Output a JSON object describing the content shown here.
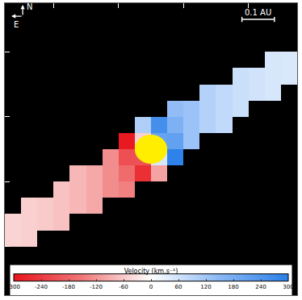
{
  "chart_data": {
    "type": "heatmap",
    "x": [
      -0.425,
      -0.375,
      -0.325,
      -0.275,
      -0.225,
      -0.175,
      -0.125,
      -0.075,
      -0.025,
      0.025,
      0.075,
      0.125,
      0.175,
      0.225,
      0.275,
      0.325,
      0.375,
      0.425
    ],
    "y": [
      -0.425,
      -0.375,
      -0.325,
      -0.275,
      -0.225,
      -0.175,
      -0.125,
      -0.075,
      -0.025,
      0.025,
      0.075,
      0.125,
      0.175,
      0.225,
      0.275,
      0.325,
      0.375,
      0.425
    ],
    "z": [
      [
        null,
        null,
        null,
        null,
        null,
        null,
        null,
        null,
        null,
        null,
        null,
        null,
        null,
        null,
        null,
        null,
        null,
        null
      ],
      [
        null,
        null,
        null,
        null,
        null,
        null,
        null,
        null,
        null,
        null,
        null,
        null,
        null,
        null,
        null,
        null,
        null,
        null
      ],
      [
        null,
        null,
        null,
        null,
        null,
        null,
        null,
        null,
        null,
        null,
        null,
        null,
        null,
        null,
        null,
        null,
        null,
        null
      ],
      [
        -48,
        -53,
        null,
        null,
        null,
        null,
        null,
        null,
        null,
        null,
        null,
        null,
        null,
        null,
        null,
        null,
        null,
        null
      ],
      [
        -48,
        -53,
        -59,
        -68,
        null,
        null,
        null,
        null,
        null,
        null,
        null,
        null,
        null,
        null,
        null,
        null,
        null,
        null
      ],
      [
        null,
        -53,
        -59,
        -68,
        -80,
        -97,
        null,
        null,
        null,
        null,
        null,
        null,
        null,
        null,
        null,
        null,
        null,
        null
      ],
      [
        null,
        null,
        null,
        -68,
        -80,
        -97,
        -127,
        -141,
        null,
        null,
        null,
        null,
        null,
        null,
        null,
        null,
        null,
        null
      ],
      [
        null,
        null,
        null,
        null,
        -80,
        -97,
        -127,
        -169,
        -259,
        -103,
        null,
        null,
        null,
        null,
        null,
        null,
        null,
        null
      ],
      [
        null,
        null,
        null,
        null,
        null,
        null,
        -127,
        -212,
        -206,
        51,
        293,
        null,
        null,
        null,
        null,
        null,
        null,
        null
      ],
      [
        null,
        null,
        null,
        null,
        null,
        null,
        null,
        -293,
        -51,
        206,
        212,
        127,
        null,
        null,
        null,
        null,
        null,
        null
      ],
      [
        null,
        null,
        null,
        null,
        null,
        null,
        null,
        null,
        103,
        259,
        169,
        127,
        97,
        80,
        null,
        null,
        null,
        null
      ],
      [
        null,
        null,
        null,
        null,
        null,
        null,
        null,
        null,
        null,
        null,
        141,
        127,
        97,
        80,
        68,
        null,
        null,
        null
      ],
      [
        null,
        null,
        null,
        null,
        null,
        null,
        null,
        null,
        null,
        null,
        null,
        null,
        97,
        80,
        68,
        59,
        53,
        null
      ],
      [
        null,
        null,
        null,
        null,
        null,
        null,
        null,
        null,
        null,
        null,
        null,
        null,
        null,
        null,
        68,
        59,
        53,
        48
      ],
      [
        null,
        null,
        null,
        null,
        null,
        null,
        null,
        null,
        null,
        null,
        null,
        null,
        null,
        null,
        null,
        null,
        53,
        48
      ],
      [
        null,
        null,
        null,
        null,
        null,
        null,
        null,
        null,
        null,
        null,
        null,
        null,
        null,
        null,
        null,
        null,
        null,
        null
      ],
      [
        null,
        null,
        null,
        null,
        null,
        null,
        null,
        null,
        null,
        null,
        null,
        null,
        null,
        null,
        null,
        null,
        null,
        null
      ],
      [
        null,
        null,
        null,
        null,
        null,
        null,
        null,
        null,
        null,
        null,
        null,
        null,
        null,
        null,
        null,
        null,
        null,
        null
      ]
    ],
    "xlim": [
      -0.45,
      0.45
    ],
    "ylim": [
      -0.45,
      0.45
    ],
    "xticks": [
      -0.3,
      -0.1,
      0.1,
      0.3
    ],
    "yticks": [
      -0.3,
      -0.1,
      0.1,
      0.3
    ],
    "tick_labels": false,
    "colorbar": {
      "title": "Velocity (km.s⁻¹)",
      "range": [
        -300,
        300
      ],
      "ticks": [
        -300,
        -240,
        -180,
        -120,
        -60,
        0,
        60,
        120,
        180,
        240,
        300
      ]
    },
    "compass": {
      "north": "N",
      "east": "E"
    },
    "scale_bar": {
      "label": "0.1 AU",
      "length": 0.1
    }
  }
}
